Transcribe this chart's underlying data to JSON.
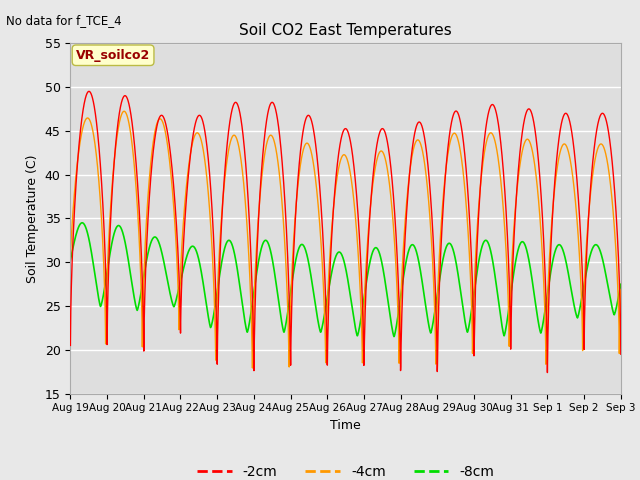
{
  "title": "Soil CO2 East Temperatures",
  "subtitle": "No data for f_TCE_4",
  "ylabel": "Soil Temperature (C)",
  "xlabel": "Time",
  "ylim": [
    15,
    55
  ],
  "background_color": "#e8e8e8",
  "plot_bg_color": "#dedede",
  "grid_color": "#ffffff",
  "colors": {
    "-2cm": "#ff0000",
    "-4cm": "#ff9900",
    "-8cm": "#00dd00"
  },
  "legend_label": "VR_soilco2",
  "x_tick_labels": [
    "Aug 19",
    "Aug 20",
    "Aug 21",
    "Aug 22",
    "Aug 23",
    "Aug 24",
    "Aug 25",
    "Aug 26",
    "Aug 27",
    "Aug 28",
    "Aug 29",
    "Aug 30",
    "Aug 31",
    "Sep 1",
    "Sep 2",
    "Sep 3"
  ],
  "num_days": 15,
  "min_2cm": [
    20.5,
    20.0,
    19.0,
    21.0,
    17.0,
    16.0,
    16.5,
    16.5,
    16.5,
    16.0,
    16.0,
    18.0,
    19.0,
    16.5,
    19.5
  ],
  "max_2cm": [
    49.0,
    50.0,
    48.0,
    45.5,
    48.0,
    48.5,
    48.0,
    45.5,
    45.0,
    45.5,
    46.5,
    48.0,
    48.0,
    47.0,
    47.0
  ],
  "min_4cm": [
    24.0,
    20.0,
    19.5,
    21.5,
    17.5,
    16.5,
    16.5,
    17.0,
    17.0,
    17.0,
    17.0,
    18.5,
    19.5,
    17.5,
    19.5
  ],
  "max_4cm": [
    46.0,
    47.0,
    47.5,
    45.0,
    44.5,
    44.5,
    44.5,
    42.5,
    42.0,
    43.5,
    44.5,
    45.0,
    44.5,
    43.5,
    43.5
  ],
  "min_8cm": [
    27.0,
    24.5,
    24.5,
    25.0,
    22.0,
    22.0,
    22.0,
    22.0,
    21.5,
    21.5,
    22.0,
    22.0,
    21.5,
    22.0,
    24.0
  ],
  "max_8cm": [
    34.5,
    34.5,
    33.5,
    31.5,
    32.5,
    32.5,
    32.5,
    31.0,
    31.5,
    32.0,
    32.0,
    32.5,
    32.5,
    32.0,
    32.0
  ],
  "peak_sharpness": 3.5,
  "phase_4cm": 0.04,
  "phase_8cm": 0.18
}
